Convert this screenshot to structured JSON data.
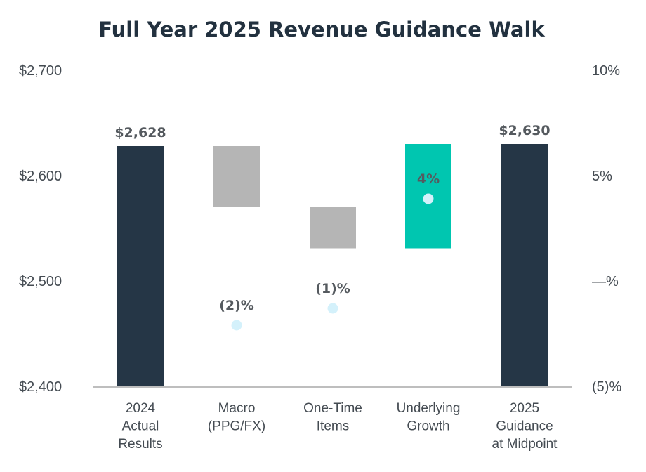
{
  "chart_data": {
    "type": "bar",
    "subtype": "waterfall",
    "title": "Full Year 2025 Revenue Guidance Walk",
    "categories": [
      [
        "2024",
        "Actual",
        "Results"
      ],
      [
        "Macro",
        "(PPG/FX)"
      ],
      [
        "One-Time",
        "Items"
      ],
      [
        "Underlying",
        "Growth"
      ],
      [
        "2025",
        "Guidance",
        "at Midpoint"
      ]
    ],
    "bars": [
      {
        "kind": "total",
        "from": 2400,
        "to": 2628,
        "color": "#253646",
        "label": "$2,628"
      },
      {
        "kind": "delta",
        "from": 2628,
        "to": 2570,
        "color": "#b5b5b5",
        "label": ""
      },
      {
        "kind": "delta",
        "from": 2570,
        "to": 2531,
        "color": "#b5b5b5",
        "label": ""
      },
      {
        "kind": "delta",
        "from": 2531,
        "to": 2630,
        "color": "#00c6b0",
        "label": ""
      },
      {
        "kind": "total",
        "from": 2400,
        "to": 2630,
        "color": "#253646",
        "label": "$2,630"
      }
    ],
    "pct_change": [
      {
        "index": 1,
        "value": -2.1,
        "label": "(2)%"
      },
      {
        "index": 2,
        "value": -1.3,
        "label": "(1)%"
      },
      {
        "index": 3,
        "value": 3.9,
        "label": "4%"
      }
    ],
    "marker_color": "#d4f1fb",
    "y_left": {
      "min": 2400,
      "max": 2700,
      "ticks": [
        2400,
        2500,
        2600,
        2700
      ],
      "tick_labels": [
        "$2,400",
        "$2,500",
        "$2,600",
        "$2,700"
      ]
    },
    "y_right": {
      "min": -5,
      "max": 10,
      "ticks": [
        -5,
        0,
        5,
        10
      ],
      "tick_labels": [
        "(5)%",
        "—%",
        "5%",
        "10%"
      ]
    },
    "xlabel": "",
    "ylabel": "",
    "grid": false
  }
}
